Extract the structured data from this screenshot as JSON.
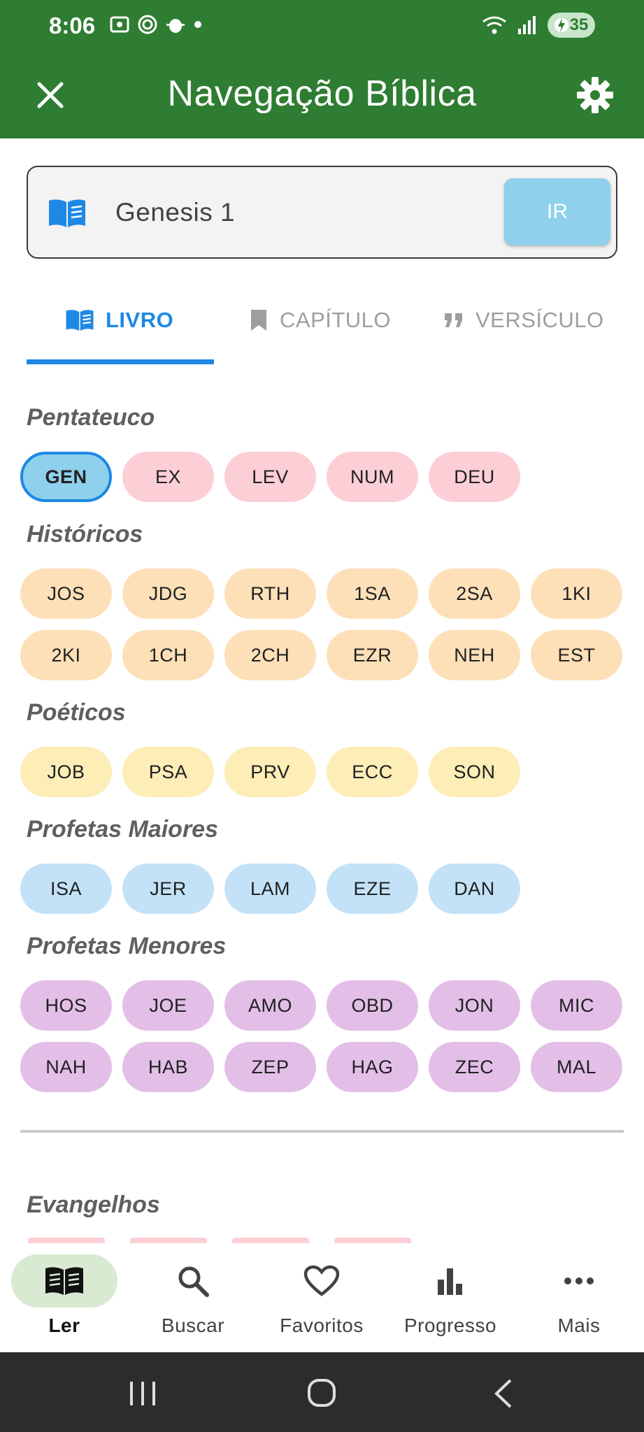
{
  "status_bar": {
    "time": "8:06",
    "battery": "35"
  },
  "app_bar": {
    "title": "Navegação Bíblica",
    "close_icon": "close-icon",
    "settings_icon": "gear-icon"
  },
  "search": {
    "value": "Genesis 1",
    "go_label": "IR",
    "icon": "book-open-icon"
  },
  "tabs": [
    {
      "label": "LIVRO",
      "icon": "book-open-icon",
      "active": true
    },
    {
      "label": "CAPÍTULO",
      "icon": "bookmark-icon",
      "active": false
    },
    {
      "label": "VERSÍCULO",
      "icon": "quote-icon",
      "active": false
    }
  ],
  "sections": [
    {
      "title": "Pentateuco",
      "color": "#fccfd6",
      "books": [
        "GEN",
        "EX",
        "LEV",
        "NUM",
        "DEU"
      ]
    },
    {
      "title": "Históricos",
      "color": "#fde0b8",
      "books": [
        "JOS",
        "JDG",
        "RTH",
        "1SA",
        "2SA",
        "1KI",
        "2KI",
        "1CH",
        "2CH",
        "EZR",
        "NEH",
        "EST"
      ]
    },
    {
      "title": "Poéticos",
      "color": "#fdedb7",
      "books": [
        "JOB",
        "PSA",
        "PRV",
        "ECC",
        "SON"
      ]
    },
    {
      "title": "Profetas Maiores",
      "color": "#c3e2f8",
      "books": [
        "ISA",
        "JER",
        "LAM",
        "EZE",
        "DAN"
      ]
    },
    {
      "title": "Profetas Menores",
      "color": "#e3bfe8",
      "books": [
        "HOS",
        "JOE",
        "AMO",
        "OBD",
        "JON",
        "MIC",
        "NAH",
        "HAB",
        "ZEP",
        "HAG",
        "ZEC",
        "MAL"
      ]
    },
    {
      "title": "Evangelhos"
    }
  ],
  "selected_book": "GEN",
  "accent_color": "#1e88e5",
  "brand_color": "#2e7d32",
  "bottom_nav": [
    {
      "label": "Ler",
      "icon": "book-icon",
      "active": true
    },
    {
      "label": "Buscar",
      "icon": "search-icon",
      "active": false
    },
    {
      "label": "Favoritos",
      "icon": "heart-icon",
      "active": false
    },
    {
      "label": "Progresso",
      "icon": "bar-chart-icon",
      "active": false
    },
    {
      "label": "Mais",
      "icon": "more-icon",
      "active": false
    }
  ]
}
